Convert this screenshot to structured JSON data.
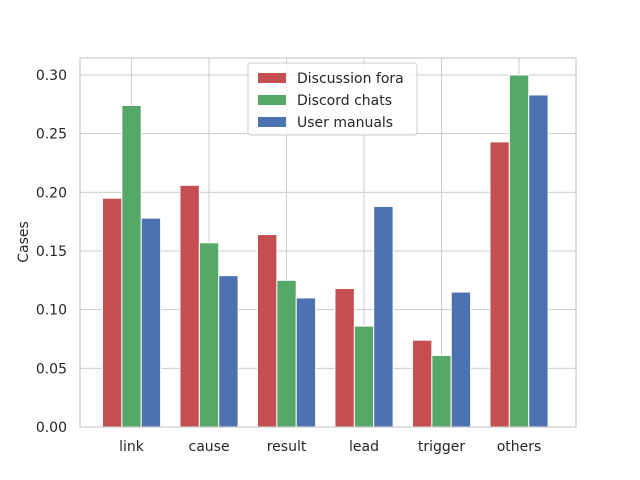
{
  "chart_data": {
    "type": "bar",
    "categories": [
      "link",
      "cause",
      "result",
      "lead",
      "trigger",
      "others"
    ],
    "series": [
      {
        "name": "Discussion fora",
        "color": "#c44e52",
        "values": [
          0.195,
          0.206,
          0.164,
          0.118,
          0.074,
          0.243
        ]
      },
      {
        "name": "Discord chats",
        "color": "#55a868",
        "values": [
          0.274,
          0.157,
          0.125,
          0.086,
          0.061,
          0.3
        ]
      },
      {
        "name": "User manuals",
        "color": "#4c72b0",
        "values": [
          0.178,
          0.129,
          0.11,
          0.188,
          0.115,
          0.283
        ]
      }
    ],
    "title": "",
    "xlabel": "",
    "ylabel": "Cases",
    "ylim": [
      0,
      0.3
    ],
    "yticks": [
      0.0,
      0.05,
      0.1,
      0.15,
      0.2,
      0.25,
      0.3
    ],
    "ytick_labels": [
      "0.00",
      "0.05",
      "0.10",
      "0.15",
      "0.20",
      "0.25",
      "0.30"
    ],
    "grid": true,
    "legend_position": "top-center"
  }
}
